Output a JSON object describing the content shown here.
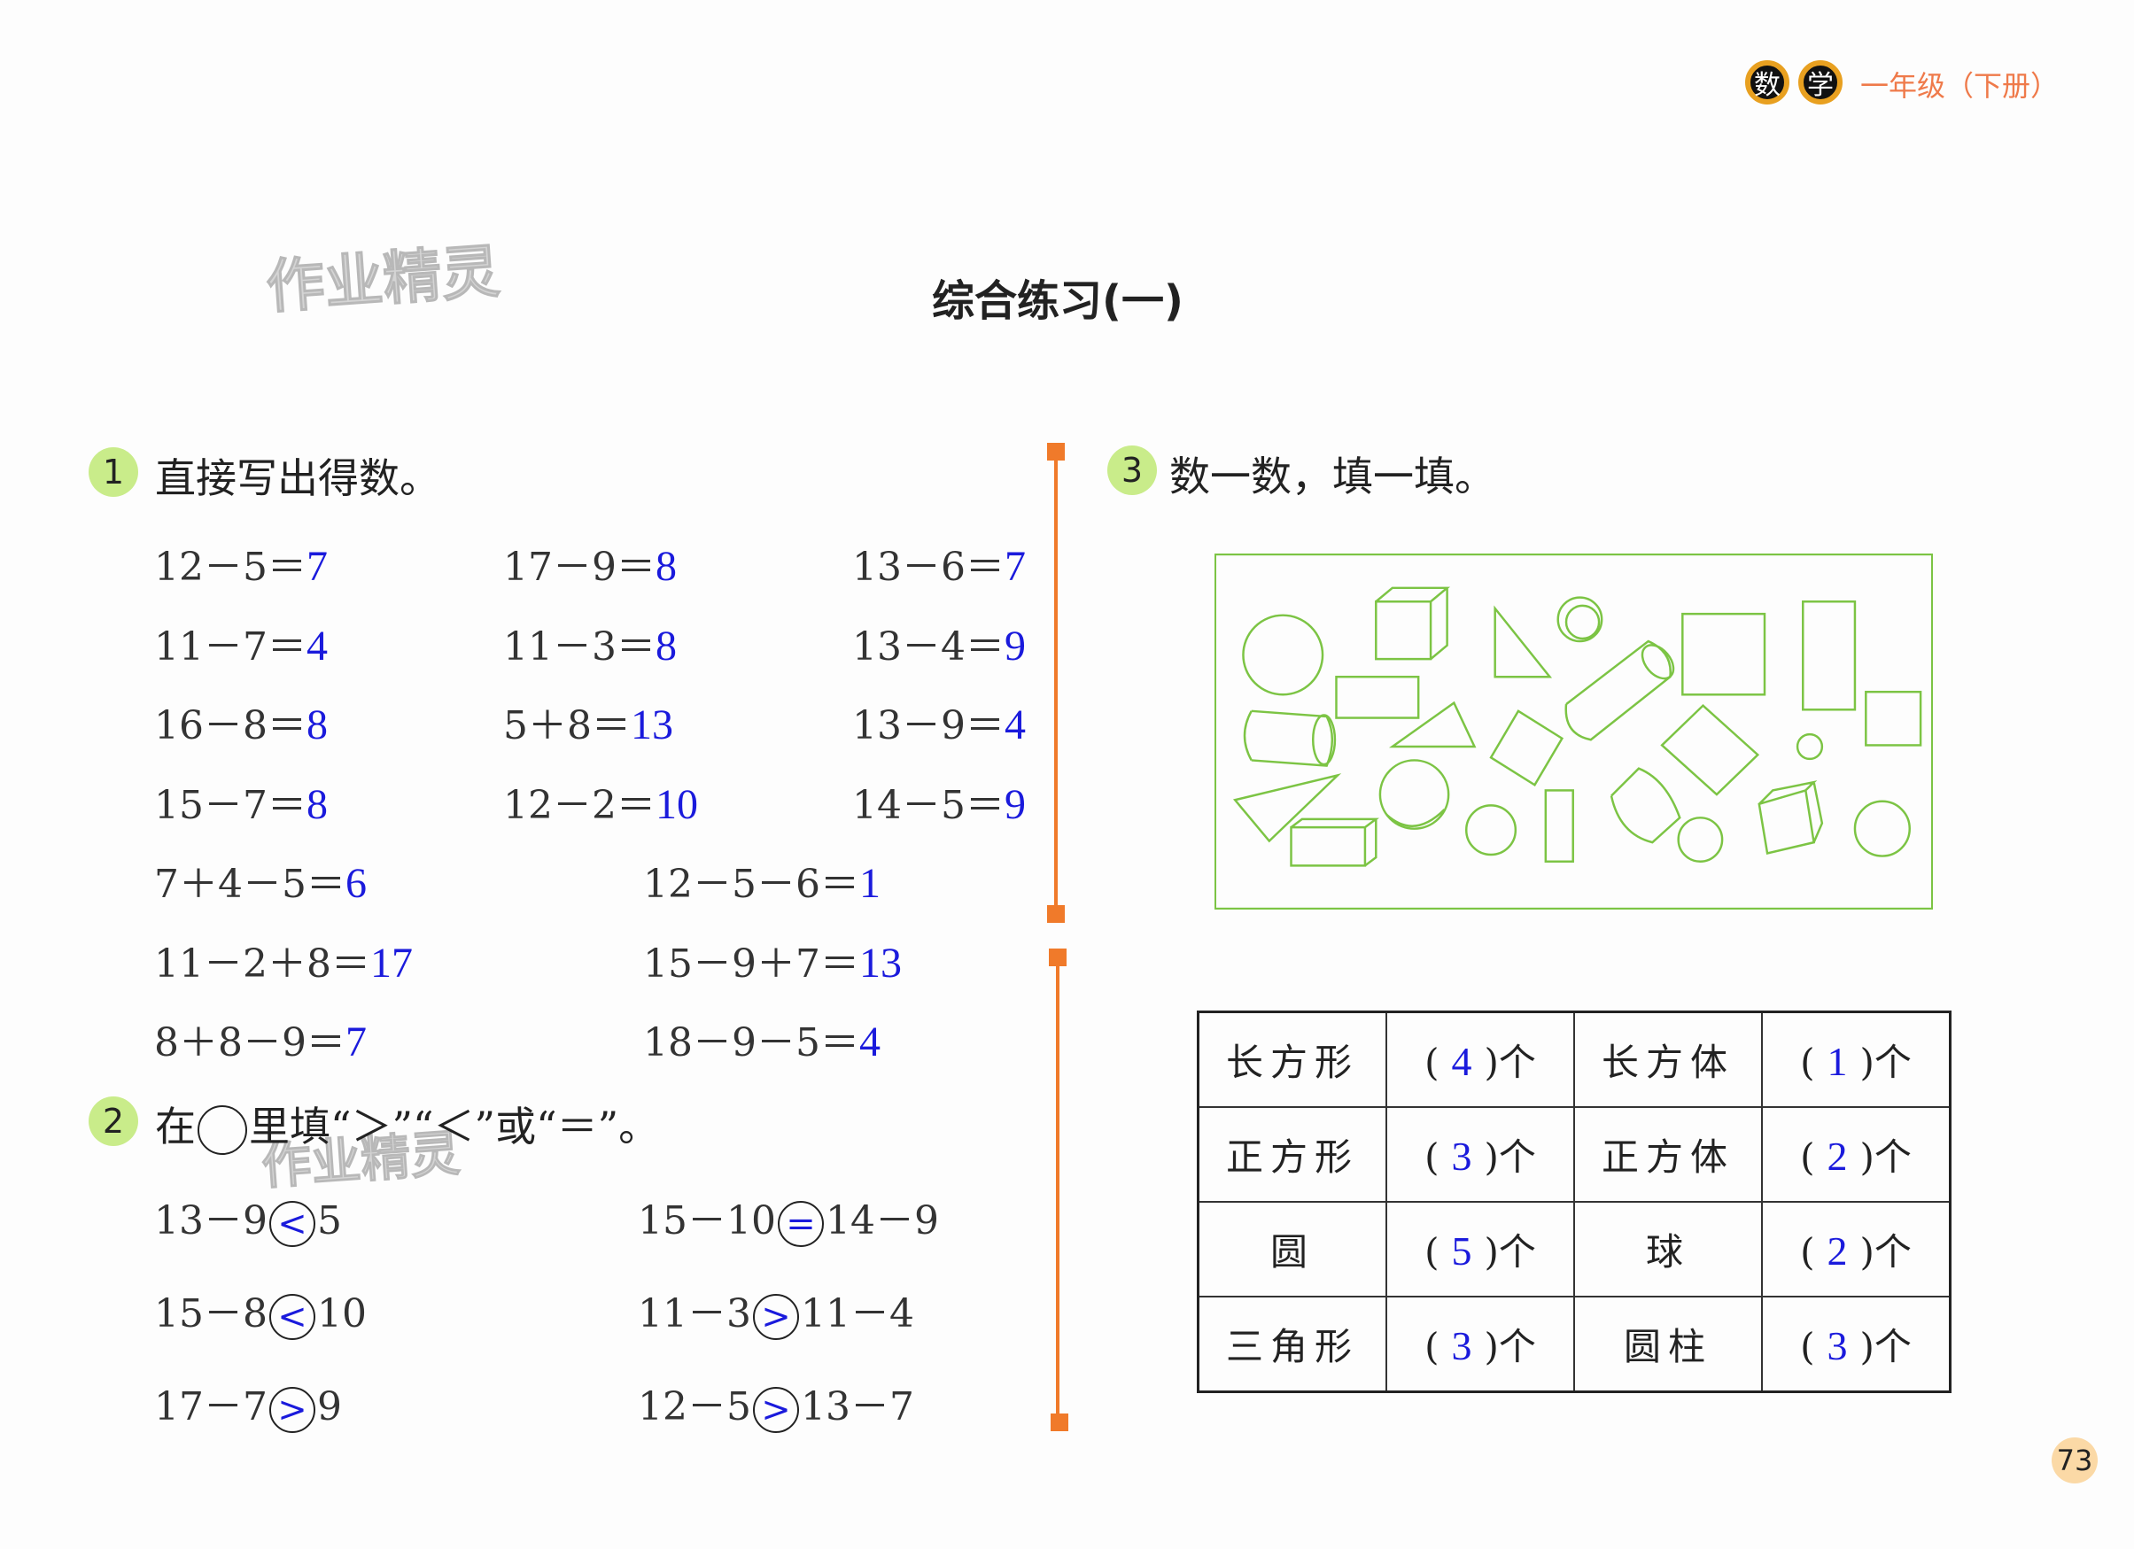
{
  "header": {
    "badge1": "数",
    "badge2": "学",
    "grade": "一年级（下册）"
  },
  "title": "综合练习(一)",
  "watermark": "作业精灵",
  "section1": {
    "number": "1",
    "title": "直接写出得数。",
    "grid": [
      [
        {
          "expr": "12－5＝",
          "answer": "7"
        },
        {
          "expr": "17－9＝",
          "answer": "8"
        },
        {
          "expr": "13－6＝",
          "answer": "7"
        }
      ],
      [
        {
          "expr": "11－7＝",
          "answer": "4"
        },
        {
          "expr": "11－3＝",
          "answer": "8"
        },
        {
          "expr": "13－4＝",
          "answer": "9"
        }
      ],
      [
        {
          "expr": "16－8＝",
          "answer": "8"
        },
        {
          "expr": "5＋8＝",
          "answer": "13"
        },
        {
          "expr": "13－9＝",
          "answer": "4"
        }
      ],
      [
        {
          "expr": "15－7＝",
          "answer": "8"
        },
        {
          "expr": "12－2＝",
          "answer": "10"
        },
        {
          "expr": "14－5＝",
          "answer": "9"
        }
      ]
    ],
    "pairs": [
      [
        {
          "expr": "7＋4－5＝",
          "answer": "6"
        },
        {
          "expr": "12－5－6＝",
          "answer": "1"
        }
      ],
      [
        {
          "expr": "11－2＋8＝",
          "answer": "17"
        },
        {
          "expr": "15－9＋7＝",
          "answer": "13"
        }
      ],
      [
        {
          "expr": "8＋8－9＝",
          "answer": "7"
        },
        {
          "expr": "18－9－5＝",
          "answer": "4"
        }
      ]
    ]
  },
  "section2": {
    "number": "2",
    "title_pre": "在",
    "title_post": "里填“＞”“＜”或“＝”。",
    "rows": [
      [
        {
          "left": "13－9",
          "symbol": "<",
          "right": "5"
        },
        {
          "left": "15－10",
          "symbol": "=",
          "right": "14－9"
        }
      ],
      [
        {
          "left": "15－8",
          "symbol": "<",
          "right": "10"
        },
        {
          "left": "11－3",
          "symbol": ">",
          "right": "11－4"
        }
      ],
      [
        {
          "left": "17－7",
          "symbol": ">",
          "right": "9"
        },
        {
          "left": "12－5",
          "symbol": ">",
          "right": "13－7"
        }
      ]
    ]
  },
  "section3": {
    "number": "3",
    "title": "数一数，填一填。",
    "table": [
      [
        {
          "label": "长方形",
          "count": "4"
        },
        {
          "label": "长方体",
          "count": "1"
        }
      ],
      [
        {
          "label": "正方形",
          "count": "3"
        },
        {
          "label": "正方体",
          "count": "2"
        }
      ],
      [
        {
          "label": "圆",
          "count": "5"
        },
        {
          "label": "球",
          "count": "2"
        }
      ],
      [
        {
          "label": "三角形",
          "count": "3"
        },
        {
          "label": "圆柱",
          "count": "3"
        }
      ]
    ],
    "paren_open": "(",
    "paren_close": ")",
    "unit": "个"
  },
  "page_number": "73",
  "colors": {
    "answer": "#1a1adc",
    "accent": "#f07a2a",
    "shapes": "#7cc444",
    "section_badge": "#c9ec8a"
  }
}
